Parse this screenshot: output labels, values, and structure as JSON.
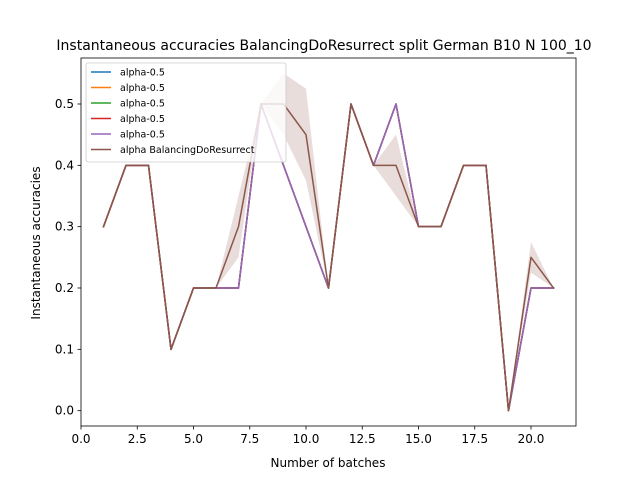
{
  "chart_data": {
    "type": "line",
    "title": "Instantaneous accuracies BalancingDoResurrect split German B10 N 100_10",
    "xlabel": "Number of batches",
    "ylabel": "Instantaneous accuracies",
    "xlim": [
      0,
      22
    ],
    "ylim": [
      -0.025,
      0.575
    ],
    "xticks": [
      0.0,
      2.5,
      5.0,
      7.5,
      10.0,
      12.5,
      15.0,
      17.5,
      20.0
    ],
    "xtick_labels": [
      "0.0",
      "2.5",
      "5.0",
      "7.5",
      "10.0",
      "12.5",
      "15.0",
      "17.5",
      "20.0"
    ],
    "yticks": [
      0.0,
      0.1,
      0.2,
      0.3,
      0.4,
      0.5
    ],
    "ytick_labels": [
      "0.0",
      "0.1",
      "0.2",
      "0.3",
      "0.4",
      "0.5"
    ],
    "grid": false,
    "legend_position": "top-left",
    "x": [
      1,
      2,
      3,
      4,
      5,
      6,
      7,
      8,
      9,
      10,
      11,
      12,
      13,
      14,
      15,
      16,
      17,
      18,
      19,
      20,
      21
    ],
    "series": [
      {
        "name": "alpha-0.5",
        "color": "#1f77b4",
        "values": [
          0.3,
          0.4,
          0.4,
          0.1,
          0.2,
          0.2,
          0.2,
          0.5,
          0.4,
          0.3,
          0.2,
          0.5,
          0.4,
          0.5,
          0.3,
          0.3,
          0.4,
          0.4,
          0.0,
          0.2,
          0.2
        ]
      },
      {
        "name": "alpha-0.5",
        "color": "#ff7f0e",
        "values": [
          0.3,
          0.4,
          0.4,
          0.1,
          0.2,
          0.2,
          0.2,
          0.5,
          0.4,
          0.3,
          0.2,
          0.5,
          0.4,
          0.5,
          0.3,
          0.3,
          0.4,
          0.4,
          0.0,
          0.2,
          0.2
        ]
      },
      {
        "name": "alpha-0.5",
        "color": "#2ca02c",
        "values": [
          0.3,
          0.4,
          0.4,
          0.1,
          0.2,
          0.2,
          0.2,
          0.5,
          0.4,
          0.3,
          0.2,
          0.5,
          0.4,
          0.5,
          0.3,
          0.3,
          0.4,
          0.4,
          0.0,
          0.2,
          0.2
        ]
      },
      {
        "name": "alpha-0.5",
        "color": "#d62728",
        "values": [
          0.3,
          0.4,
          0.4,
          0.1,
          0.2,
          0.2,
          0.2,
          0.5,
          0.4,
          0.3,
          0.2,
          0.5,
          0.4,
          0.5,
          0.3,
          0.3,
          0.4,
          0.4,
          0.0,
          0.2,
          0.2
        ]
      },
      {
        "name": "alpha-0.5",
        "color": "#9467bd",
        "values": [
          0.3,
          0.4,
          0.4,
          0.1,
          0.2,
          0.2,
          0.2,
          0.5,
          0.4,
          0.3,
          0.2,
          0.5,
          0.4,
          0.5,
          0.3,
          0.3,
          0.4,
          0.4,
          0.0,
          0.2,
          0.2
        ]
      },
      {
        "name": "alpha BalancingDoResurrect",
        "color": "#8c564b",
        "values": [
          0.3,
          0.4,
          0.4,
          0.1,
          0.2,
          0.2,
          0.3,
          0.5,
          0.5,
          0.45,
          0.2,
          0.5,
          0.4,
          0.4,
          0.3,
          0.3,
          0.4,
          0.4,
          0.0,
          0.25,
          0.2
        ]
      }
    ],
    "band": {
      "series": "alpha BalancingDoResurrect",
      "color": "#8c564b",
      "lower": [
        0.3,
        0.4,
        0.4,
        0.1,
        0.2,
        0.2,
        0.25,
        0.5,
        0.45,
        0.375,
        0.2,
        0.5,
        0.4,
        0.35,
        0.3,
        0.3,
        0.4,
        0.4,
        0.0,
        0.225,
        0.2
      ],
      "upper": [
        0.3,
        0.4,
        0.4,
        0.1,
        0.2,
        0.2,
        0.35,
        0.5,
        0.55,
        0.525,
        0.2,
        0.5,
        0.4,
        0.45,
        0.3,
        0.3,
        0.4,
        0.4,
        0.0,
        0.275,
        0.2
      ]
    }
  }
}
